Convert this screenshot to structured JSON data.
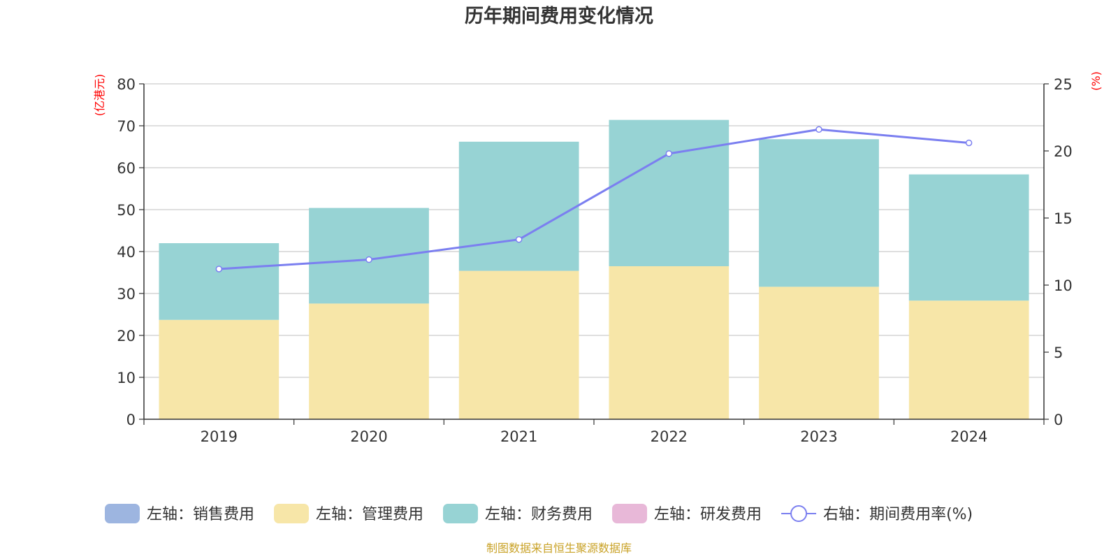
{
  "chart_data": {
    "type": "bar",
    "title": "历年期间费用变化情况",
    "categories": [
      "2019",
      "2020",
      "2021",
      "2022",
      "2023",
      "2024"
    ],
    "left_axis": {
      "unit_label": "(亿港元)",
      "ylim": [
        0,
        80
      ],
      "ticks": [
        "0",
        "10",
        "20",
        "30",
        "40",
        "50",
        "60",
        "70",
        "80"
      ]
    },
    "right_axis": {
      "unit_label": "(%)",
      "ylim": [
        0,
        25
      ],
      "ticks": [
        "0",
        "5",
        "10",
        "15",
        "20",
        "25"
      ]
    },
    "series": [
      {
        "name": "左轴：销售费用",
        "type": "bar",
        "axis": "left",
        "color": "#9db5e0",
        "values": [
          0,
          0,
          0,
          0,
          0,
          0
        ]
      },
      {
        "name": "左轴：管理费用",
        "type": "bar",
        "axis": "left",
        "color": "#f7e6a8",
        "values": [
          23.7,
          27.6,
          35.4,
          36.5,
          31.6,
          28.3
        ]
      },
      {
        "name": "左轴：财务费用",
        "type": "bar",
        "axis": "left",
        "color": "#97d3d4",
        "values": [
          18.3,
          22.8,
          30.8,
          34.9,
          35.2,
          30.1
        ]
      },
      {
        "name": "左轴：研发费用",
        "type": "bar",
        "axis": "left",
        "color": "#e8b8d8",
        "values": [
          0,
          0,
          0,
          0,
          0,
          0
        ]
      },
      {
        "name": "右轴：期间费用率(%)",
        "type": "line",
        "axis": "right",
        "color": "#7b7ff0",
        "values": [
          11.2,
          11.9,
          13.4,
          19.8,
          21.6,
          20.6
        ]
      }
    ],
    "grid": true,
    "legend_position": "bottom"
  },
  "source_note": "制图数据来自恒生聚源数据库"
}
